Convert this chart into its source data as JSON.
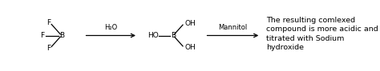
{
  "bg_color": "#ffffff",
  "text_color": "#000000",
  "line_color": "#000000",
  "figsize": [
    4.74,
    0.89
  ],
  "dpi": 100,
  "annotation_text": "The resulting comlexed\ncompound is more acidic and\ntitrated with Sodium\nhydroxide",
  "h2o_label": "H₂O",
  "mannitol_label": "Mannitol",
  "font_size": 6.5
}
